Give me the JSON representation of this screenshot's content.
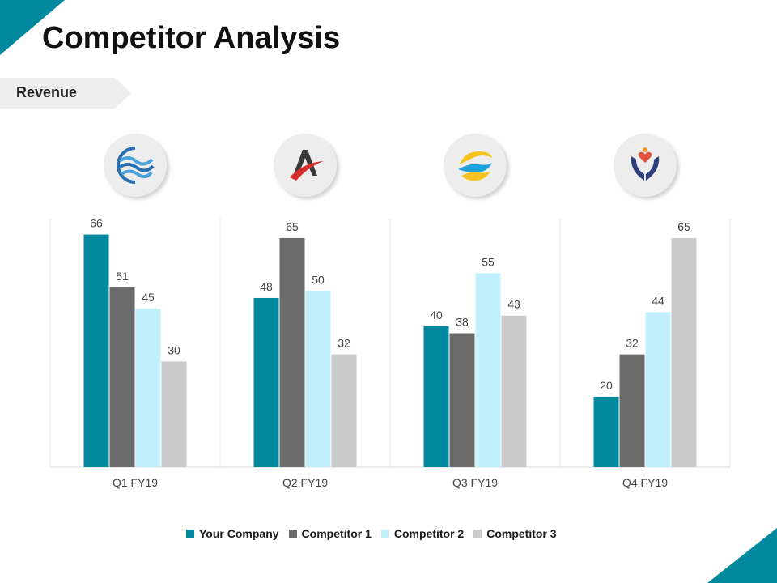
{
  "page": {
    "title": "Competitor Analysis",
    "section_tag": "Revenue"
  },
  "theme": {
    "accent": "#00889e",
    "colors": [
      "#00889e",
      "#6b6b6b",
      "#bff0fb",
      "#cbcbcb"
    ]
  },
  "logos": [
    {
      "icon": "wave-globe-icon"
    },
    {
      "icon": "arrow-swoosh-icon"
    },
    {
      "icon": "sun-waves-icon"
    },
    {
      "icon": "hands-heart-icon"
    }
  ],
  "chart_data": {
    "type": "bar",
    "categories": [
      "Q1 FY19",
      "Q2 FY19",
      "Q3 FY19",
      "Q4 FY19"
    ],
    "series": [
      {
        "name": "Your Company",
        "values": [
          66,
          48,
          40,
          20
        ]
      },
      {
        "name": "Competitor 1",
        "values": [
          51,
          65,
          38,
          32
        ]
      },
      {
        "name": "Competitor 2",
        "values": [
          45,
          50,
          55,
          44
        ]
      },
      {
        "name": "Competitor 3",
        "values": [
          30,
          32,
          43,
          65
        ]
      }
    ],
    "data_labels": true,
    "ylim": [
      0,
      70
    ],
    "grid": "vertical separators",
    "legend_position": "bottom"
  }
}
